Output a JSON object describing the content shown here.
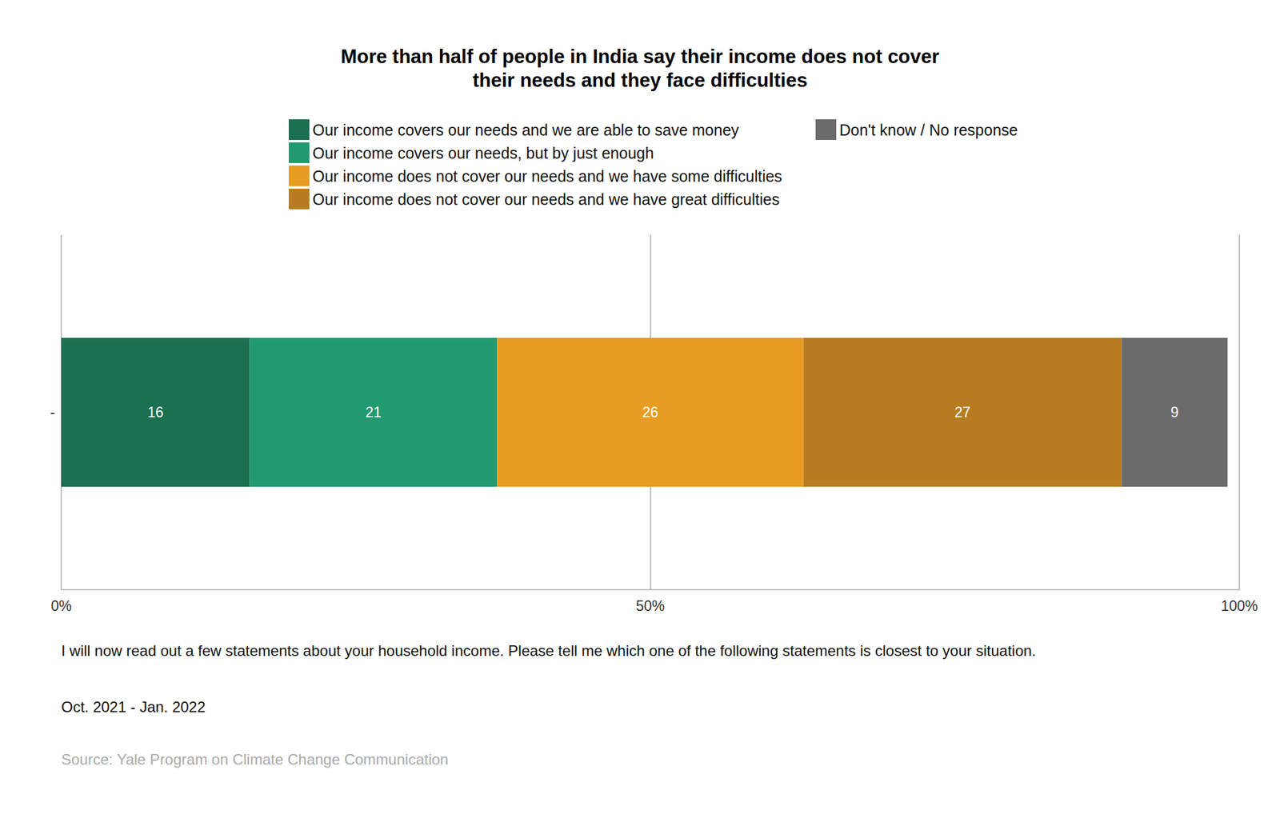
{
  "chart_data": {
    "type": "bar",
    "orientation": "horizontal",
    "stacked": true,
    "data_labels": true,
    "grid": true,
    "legend": "top",
    "title": "More than half of people in India say their income does not cover\ntheir needs and they face difficulties",
    "categories": [
      "-"
    ],
    "series": [
      {
        "name": "Our income covers our needs and we are able to save money",
        "color": "#1b7052",
        "values": [
          16
        ]
      },
      {
        "name": "Our income covers our needs, but by just enough",
        "color": "#219a72",
        "values": [
          21
        ]
      },
      {
        "name": "Our income does not cover our needs and we have some difficulties",
        "color": "#e89c22",
        "values": [
          26
        ]
      },
      {
        "name": "Our income does not cover our needs and we have great difficulties",
        "color": "#b77c1f",
        "values": [
          27
        ]
      },
      {
        "name": "Don't know / No response",
        "color": "#6b6b6b",
        "values": [
          9
        ]
      }
    ],
    "xlim": [
      0,
      100
    ],
    "xticks": [
      {
        "value": 0,
        "label": "0%"
      },
      {
        "value": 50,
        "label": "50%"
      },
      {
        "value": 100,
        "label": "100%"
      }
    ],
    "annotations": [
      "I will now read out a few statements about your household income. Please tell me which one of the following statements is closest to your situation.",
      "Oct. 2021 - Jan. 2022"
    ],
    "source": "Source: Yale Program on Climate Change Communication"
  }
}
